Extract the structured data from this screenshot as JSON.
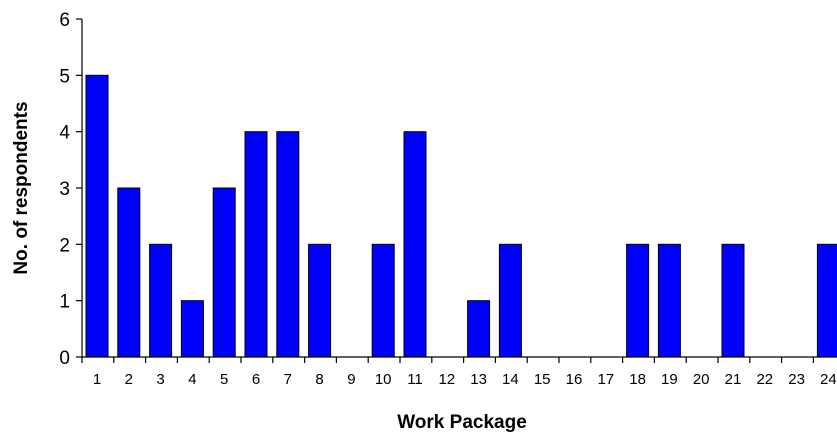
{
  "chart_data": {
    "type": "bar",
    "title": "",
    "xlabel": "Work Package",
    "ylabel": "No. of respondents",
    "ylim": [
      0,
      6
    ],
    "yticks": [
      "0",
      "1",
      "2",
      "3",
      "4",
      "5",
      "6"
    ],
    "grid": false,
    "legend": "none",
    "categories": [
      "1",
      "2",
      "3",
      "4",
      "5",
      "6",
      "7",
      "8",
      "9",
      "10",
      "11",
      "12",
      "13",
      "14",
      "15",
      "16",
      "17",
      "18",
      "19",
      "20",
      "21",
      "22",
      "23",
      "24"
    ],
    "series": [
      {
        "values": [
          5,
          3,
          2,
          1,
          3,
          4,
          4,
          2,
          0,
          2,
          4,
          0,
          1,
          2,
          0,
          0,
          0,
          2,
          2,
          0,
          2,
          0,
          0,
          2
        ]
      }
    ],
    "colors": {
      "bar_fill": "#0000ff",
      "bar_stroke": "#000000",
      "axis": "#000000"
    }
  }
}
